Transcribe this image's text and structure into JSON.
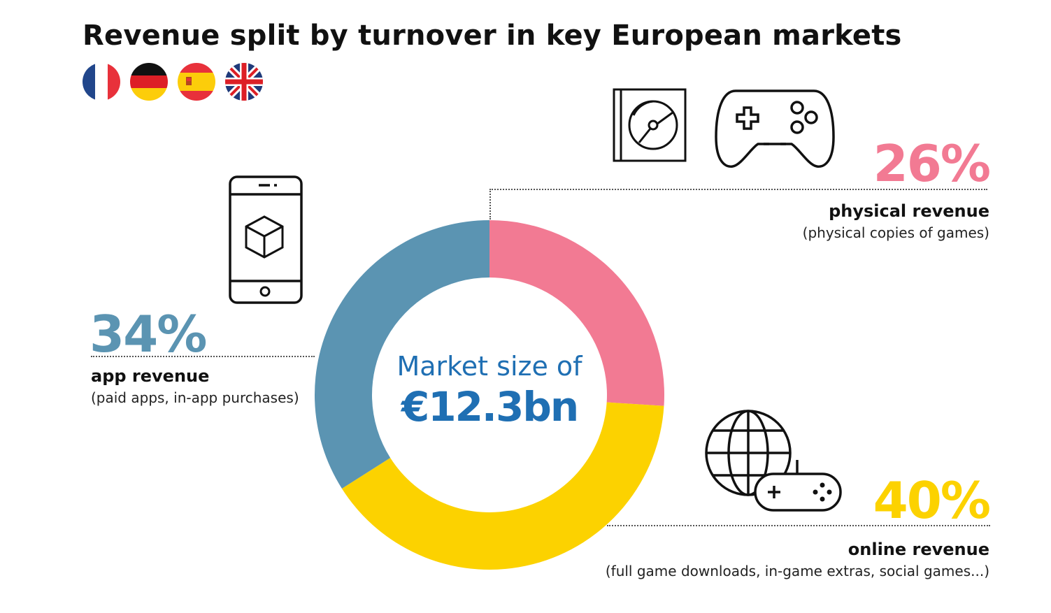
{
  "title": "Revenue split by turnover in key European markets",
  "flags": [
    "france-flag",
    "germany-flag",
    "spain-flag",
    "uk-flag"
  ],
  "center": {
    "label": "Market size of",
    "value": "€12.3bn"
  },
  "segments": {
    "physical": {
      "percent_text": "26%",
      "label": "physical revenue",
      "description": "(physical copies of games)"
    },
    "online": {
      "percent_text": "40%",
      "label": "online revenue",
      "description": "(full game downloads, in-game extras, social games...)"
    },
    "app": {
      "percent_text": "34%",
      "label": "app revenue",
      "description": "(paid apps, in-app purchases)"
    }
  },
  "icons": [
    "game-case-icon",
    "gamepad-icon",
    "smartphone-icon",
    "globe-gamepad-icon"
  ],
  "chart_data": {
    "type": "pie",
    "donut": true,
    "categories": [
      "physical revenue",
      "online revenue",
      "app revenue"
    ],
    "values": [
      26,
      40,
      34
    ],
    "unit": "%",
    "colors": [
      "#f27a93",
      "#fcd200",
      "#5b94b2"
    ],
    "center_text": "Market size of €12.3bn"
  }
}
